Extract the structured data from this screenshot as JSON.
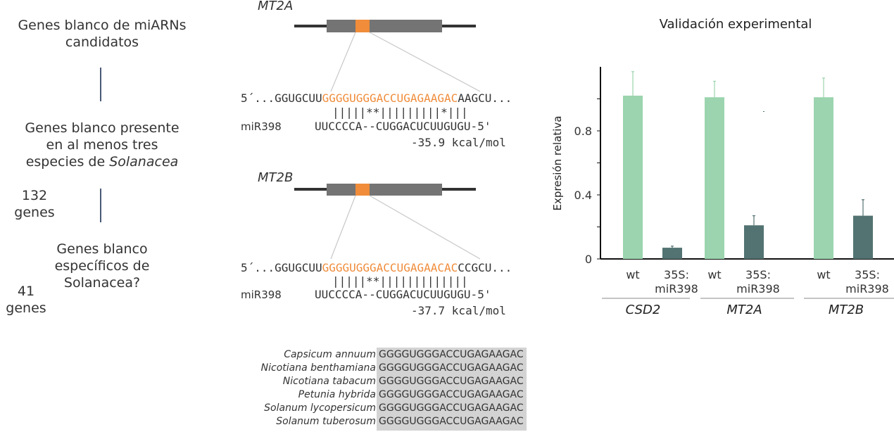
{
  "flow": {
    "step1": "Genes blanco de miARNs candidatos",
    "step2_a": "Genes blanco presente",
    "step2_b": "en al menos tres",
    "step2_c": "especies de ",
    "step2_c_italic": "Solanacea",
    "step3": "Genes blanco específicos de Solanacea?",
    "count1_num": "132",
    "count1_unit": "genes",
    "count2_num": "41",
    "count2_unit": "genes"
  },
  "alignments": [
    {
      "gene": "MT2A",
      "prefix": "5´...GGUGCUU",
      "target": "GGGGUGGGACCUGAGAAGAC",
      "suffix": "AAGCU...",
      "pairing": "|||||**|||||||||*|||",
      "mirna_label": "miR398",
      "mirna_seq": "UUCCCCA--CUGGACUCUUGUGU-5'",
      "energy": "-35.9 kcal/mol"
    },
    {
      "gene": "MT2B",
      "prefix": "5´...GGUGCUU",
      "target": "GGGGUGGGACCUGAGAACAC",
      "suffix": "CCGCU...",
      "pairing": "|||||**|||||||||||||",
      "mirna_label": "miR398",
      "mirna_seq": "UUCCCCA--CUGGACUCUUGUGU-5'",
      "energy": "-37.7 kcal/mol"
    }
  ],
  "species": [
    {
      "name": "Capsicum annuum",
      "seq": "GGGGUGGGACCUGAGAAGAC"
    },
    {
      "name": "Nicotiana benthamiana",
      "seq": "GGGGUGGGACCUGAGAAGAC"
    },
    {
      "name": "Nicotiana tabacum",
      "seq": "GGGGUGGGACCUGAGAAGAC"
    },
    {
      "name": "Petunia hybrida",
      "seq": "GGGGUGGGACCUGAGAAGAC"
    },
    {
      "name": "Solanum lycopersicum",
      "seq": "GGGGUGGGACCUGAGAAGAC"
    },
    {
      "name": "Solanum tuberosum",
      "seq": "GGGGUGGGACCUGAGAAGAC"
    }
  ],
  "chart_data": {
    "type": "bar",
    "title": "Validación experimental",
    "ylabel": "Expresión relativa",
    "ylim": [
      0,
      1.2
    ],
    "yticks": [
      "0",
      "0.4",
      "0.8"
    ],
    "groups": [
      {
        "name": "CSD2",
        "bars": [
          {
            "label_1": "wt",
            "label_2": "",
            "value": 1.02,
            "err": 0.15
          },
          {
            "label_1": "35S:",
            "label_2": "miR398",
            "value": 0.07,
            "err": 0.01
          }
        ]
      },
      {
        "name": "MT2A",
        "bars": [
          {
            "label_1": "wt",
            "label_2": "",
            "value": 1.01,
            "err": 0.1
          },
          {
            "label_1": "35S:",
            "label_2": "miR398",
            "value": 0.21,
            "err": 0.06
          }
        ]
      },
      {
        "name": "MT2B",
        "bars": [
          {
            "label_1": "wt",
            "label_2": "",
            "value": 1.01,
            "err": 0.12
          },
          {
            "label_1": "35S:",
            "label_2": "miR398",
            "value": 0.27,
            "err": 0.1
          }
        ]
      }
    ],
    "colors": {
      "wt": "#9bd4ae",
      "mir": "#527371",
      "axis": "#111111"
    }
  },
  "colors": {
    "orange": "#f08c3a",
    "gene_body": "#747474",
    "gene_line": "#333333",
    "species_bg": "#d3d3d3"
  }
}
